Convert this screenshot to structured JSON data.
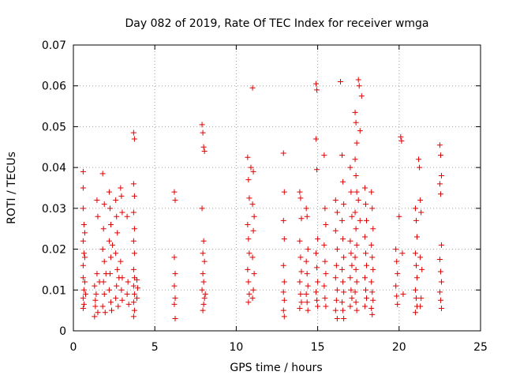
{
  "chart_data": {
    "type": "scatter",
    "title": "Day 082 of 2019, Rate Of TEC Index for receiver wmga",
    "xlabel": "GPS time / hours",
    "ylabel": "ROTI / TECUs",
    "xlim": [
      0,
      25
    ],
    "ylim": [
      0,
      0.07
    ],
    "x_ticks": [
      0,
      5,
      10,
      15,
      20,
      25
    ],
    "x_tick_labels": [
      "0",
      "5",
      "10",
      "15",
      "20",
      "25"
    ],
    "y_ticks": [
      0,
      0.01,
      0.02,
      0.03,
      0.04,
      0.05,
      0.06,
      0.07
    ],
    "y_tick_labels": [
      "0",
      "0.01",
      "0.02",
      "0.03",
      "0.04",
      "0.05",
      "0.06",
      "0.07"
    ],
    "grid": true,
    "marker": "+",
    "color": "#e00000",
    "points": [
      [
        0.6,
        0.039
      ],
      [
        0.6,
        0.035
      ],
      [
        0.6,
        0.03
      ],
      [
        0.65,
        0.026
      ],
      [
        0.6,
        0.022
      ],
      [
        0.65,
        0.019
      ],
      [
        0.6,
        0.016
      ],
      [
        0.6,
        0.013
      ],
      [
        0.65,
        0.01
      ],
      [
        0.6,
        0.008
      ],
      [
        0.65,
        0.0065
      ],
      [
        0.6,
        0.0055
      ],
      [
        0.7,
        0.012
      ],
      [
        0.7,
        0.018
      ],
      [
        0.7,
        0.024
      ],
      [
        0.75,
        0.009
      ],
      [
        1.3,
        0.0035
      ],
      [
        1.35,
        0.006
      ],
      [
        1.4,
        0.009
      ],
      [
        1.3,
        0.011
      ],
      [
        1.45,
        0.014
      ],
      [
        1.5,
        0.028
      ],
      [
        1.45,
        0.032
      ],
      [
        1.35,
        0.0075
      ],
      [
        1.5,
        0.0045
      ],
      [
        1.6,
        0.012
      ],
      [
        1.8,
        0.0385
      ],
      [
        1.85,
        0.025
      ],
      [
        1.8,
        0.02
      ],
      [
        1.9,
        0.017
      ],
      [
        1.85,
        0.012
      ],
      [
        1.9,
        0.009
      ],
      [
        1.8,
        0.006
      ],
      [
        1.95,
        0.0045
      ],
      [
        1.9,
        0.031
      ],
      [
        2.0,
        0.014
      ],
      [
        2.2,
        0.034
      ],
      [
        2.25,
        0.03
      ],
      [
        2.3,
        0.026
      ],
      [
        2.2,
        0.022
      ],
      [
        2.3,
        0.018
      ],
      [
        2.25,
        0.014
      ],
      [
        2.2,
        0.01
      ],
      [
        2.3,
        0.007
      ],
      [
        2.35,
        0.005
      ],
      [
        2.4,
        0.021
      ],
      [
        2.6,
        0.032
      ],
      [
        2.65,
        0.028
      ],
      [
        2.7,
        0.024
      ],
      [
        2.6,
        0.019
      ],
      [
        2.7,
        0.015
      ],
      [
        2.65,
        0.011
      ],
      [
        2.6,
        0.008
      ],
      [
        2.75,
        0.006
      ],
      [
        2.8,
        0.013
      ],
      [
        2.9,
        0.035
      ],
      [
        2.95,
        0.033
      ],
      [
        3.0,
        0.029
      ],
      [
        2.9,
        0.017
      ],
      [
        3.0,
        0.013
      ],
      [
        2.95,
        0.01
      ],
      [
        3.0,
        0.0075
      ],
      [
        3.3,
        0.028
      ],
      [
        3.35,
        0.012
      ],
      [
        3.3,
        0.009
      ],
      [
        3.4,
        0.0065
      ],
      [
        3.7,
        0.0485
      ],
      [
        3.75,
        0.047
      ],
      [
        3.7,
        0.036
      ],
      [
        3.75,
        0.033
      ],
      [
        3.7,
        0.029
      ],
      [
        3.75,
        0.025
      ],
      [
        3.7,
        0.022
      ],
      [
        3.75,
        0.019
      ],
      [
        3.7,
        0.015
      ],
      [
        3.75,
        0.013
      ],
      [
        3.7,
        0.011
      ],
      [
        3.75,
        0.009
      ],
      [
        3.7,
        0.007
      ],
      [
        3.75,
        0.005
      ],
      [
        3.7,
        0.0035
      ],
      [
        3.9,
        0.0125
      ],
      [
        3.95,
        0.0105
      ],
      [
        3.9,
        0.008
      ],
      [
        6.2,
        0.034
      ],
      [
        6.25,
        0.032
      ],
      [
        6.2,
        0.018
      ],
      [
        6.25,
        0.014
      ],
      [
        6.2,
        0.011
      ],
      [
        6.25,
        0.008
      ],
      [
        6.2,
        0.0065
      ],
      [
        6.25,
        0.003
      ],
      [
        7.9,
        0.0505
      ],
      [
        7.95,
        0.0485
      ],
      [
        8.0,
        0.045
      ],
      [
        8.05,
        0.044
      ],
      [
        7.9,
        0.03
      ],
      [
        8.0,
        0.022
      ],
      [
        7.95,
        0.019
      ],
      [
        8.05,
        0.017
      ],
      [
        7.95,
        0.014
      ],
      [
        8.0,
        0.012
      ],
      [
        7.9,
        0.01
      ],
      [
        8.05,
        0.008
      ],
      [
        8.0,
        0.0065
      ],
      [
        7.95,
        0.005
      ],
      [
        8.1,
        0.009
      ],
      [
        10.7,
        0.0425
      ],
      [
        10.75,
        0.037
      ],
      [
        10.8,
        0.0325
      ],
      [
        10.7,
        0.026
      ],
      [
        10.75,
        0.0225
      ],
      [
        10.8,
        0.019
      ],
      [
        10.7,
        0.015
      ],
      [
        10.75,
        0.012
      ],
      [
        10.8,
        0.009
      ],
      [
        10.75,
        0.007
      ],
      [
        10.9,
        0.04
      ],
      [
        11.0,
        0.0595
      ],
      [
        11.05,
        0.039
      ],
      [
        11.0,
        0.031
      ],
      [
        11.1,
        0.028
      ],
      [
        11.05,
        0.0245
      ],
      [
        11.0,
        0.018
      ],
      [
        11.1,
        0.014
      ],
      [
        11.05,
        0.01
      ],
      [
        11.0,
        0.008
      ],
      [
        12.9,
        0.0435
      ],
      [
        12.95,
        0.034
      ],
      [
        12.9,
        0.027
      ],
      [
        12.95,
        0.0225
      ],
      [
        12.9,
        0.016
      ],
      [
        12.95,
        0.012
      ],
      [
        12.9,
        0.0095
      ],
      [
        12.95,
        0.0075
      ],
      [
        12.9,
        0.005
      ],
      [
        12.95,
        0.0035
      ],
      [
        13.9,
        0.034
      ],
      [
        13.95,
        0.0325
      ],
      [
        14.0,
        0.0275
      ],
      [
        13.9,
        0.022
      ],
      [
        13.95,
        0.018
      ],
      [
        14.0,
        0.0145
      ],
      [
        13.9,
        0.012
      ],
      [
        13.95,
        0.009
      ],
      [
        14.0,
        0.007
      ],
      [
        13.9,
        0.0055
      ],
      [
        14.3,
        0.03
      ],
      [
        14.35,
        0.028
      ],
      [
        14.4,
        0.02
      ],
      [
        14.3,
        0.017
      ],
      [
        14.35,
        0.014
      ],
      [
        14.4,
        0.011
      ],
      [
        14.3,
        0.009
      ],
      [
        14.35,
        0.007
      ],
      [
        14.4,
        0.005
      ],
      [
        14.9,
        0.0605
      ],
      [
        14.95,
        0.059
      ],
      [
        14.9,
        0.047
      ],
      [
        14.95,
        0.0395
      ],
      [
        15.0,
        0.0225
      ],
      [
        14.9,
        0.019
      ],
      [
        14.95,
        0.0155
      ],
      [
        15.0,
        0.012
      ],
      [
        14.9,
        0.0095
      ],
      [
        14.95,
        0.0075
      ],
      [
        15.0,
        0.006
      ],
      [
        15.4,
        0.043
      ],
      [
        15.45,
        0.03
      ],
      [
        15.5,
        0.026
      ],
      [
        15.4,
        0.021
      ],
      [
        15.45,
        0.017
      ],
      [
        15.5,
        0.014
      ],
      [
        15.4,
        0.011
      ],
      [
        15.45,
        0.008
      ],
      [
        15.5,
        0.006
      ],
      [
        16.1,
        0.032
      ],
      [
        16.2,
        0.029
      ],
      [
        16.1,
        0.0245
      ],
      [
        16.2,
        0.02
      ],
      [
        16.15,
        0.016
      ],
      [
        16.1,
        0.013
      ],
      [
        16.2,
        0.01
      ],
      [
        16.15,
        0.0075
      ],
      [
        16.1,
        0.005
      ],
      [
        16.2,
        0.003
      ],
      [
        16.4,
        0.061
      ],
      [
        16.5,
        0.043
      ],
      [
        16.55,
        0.0365
      ],
      [
        16.6,
        0.031
      ],
      [
        16.5,
        0.027
      ],
      [
        16.55,
        0.0225
      ],
      [
        16.6,
        0.018
      ],
      [
        16.5,
        0.015
      ],
      [
        16.55,
        0.012
      ],
      [
        16.6,
        0.0095
      ],
      [
        16.5,
        0.007
      ],
      [
        16.55,
        0.005
      ],
      [
        16.6,
        0.003
      ],
      [
        17.0,
        0.04
      ],
      [
        17.05,
        0.034
      ],
      [
        17.1,
        0.028
      ],
      [
        17.0,
        0.022
      ],
      [
        17.05,
        0.019
      ],
      [
        17.1,
        0.016
      ],
      [
        17.0,
        0.013
      ],
      [
        17.05,
        0.01
      ],
      [
        17.1,
        0.008
      ],
      [
        17.0,
        0.006
      ],
      [
        17.3,
        0.0535
      ],
      [
        17.35,
        0.051
      ],
      [
        17.4,
        0.046
      ],
      [
        17.3,
        0.042
      ],
      [
        17.35,
        0.038
      ],
      [
        17.4,
        0.034
      ],
      [
        17.3,
        0.029
      ],
      [
        17.35,
        0.025
      ],
      [
        17.4,
        0.021
      ],
      [
        17.3,
        0.018
      ],
      [
        17.35,
        0.015
      ],
      [
        17.4,
        0.012
      ],
      [
        17.3,
        0.0095
      ],
      [
        17.35,
        0.007
      ],
      [
        17.4,
        0.005
      ],
      [
        17.5,
        0.0615
      ],
      [
        17.55,
        0.06
      ],
      [
        17.6,
        0.049
      ],
      [
        17.7,
        0.0575
      ],
      [
        17.5,
        0.032
      ],
      [
        17.6,
        0.027
      ],
      [
        17.9,
        0.035
      ],
      [
        17.95,
        0.031
      ],
      [
        18.0,
        0.027
      ],
      [
        17.9,
        0.023
      ],
      [
        17.95,
        0.019
      ],
      [
        18.0,
        0.016
      ],
      [
        17.9,
        0.013
      ],
      [
        17.95,
        0.01
      ],
      [
        18.0,
        0.008
      ],
      [
        17.9,
        0.006
      ],
      [
        18.3,
        0.034
      ],
      [
        18.35,
        0.03
      ],
      [
        18.4,
        0.025
      ],
      [
        18.3,
        0.021
      ],
      [
        18.35,
        0.018
      ],
      [
        18.4,
        0.015
      ],
      [
        18.3,
        0.012
      ],
      [
        18.35,
        0.0095
      ],
      [
        18.4,
        0.0075
      ],
      [
        18.3,
        0.0055
      ],
      [
        18.35,
        0.004
      ],
      [
        19.8,
        0.02
      ],
      [
        19.85,
        0.017
      ],
      [
        19.9,
        0.014
      ],
      [
        19.8,
        0.011
      ],
      [
        19.85,
        0.0085
      ],
      [
        19.9,
        0.0065
      ],
      [
        20.0,
        0.028
      ],
      [
        20.1,
        0.0475
      ],
      [
        20.15,
        0.0465
      ],
      [
        20.2,
        0.019
      ],
      [
        20.25,
        0.009
      ],
      [
        21.0,
        0.03
      ],
      [
        21.05,
        0.027
      ],
      [
        21.1,
        0.023
      ],
      [
        21.0,
        0.019
      ],
      [
        21.05,
        0.016
      ],
      [
        21.1,
        0.013
      ],
      [
        21.0,
        0.01
      ],
      [
        21.05,
        0.008
      ],
      [
        21.1,
        0.006
      ],
      [
        21.0,
        0.0045
      ],
      [
        21.2,
        0.042
      ],
      [
        21.25,
        0.04
      ],
      [
        21.3,
        0.032
      ],
      [
        21.35,
        0.029
      ],
      [
        21.3,
        0.018
      ],
      [
        21.35,
        0.008
      ],
      [
        21.3,
        0.006
      ],
      [
        21.4,
        0.015
      ],
      [
        22.5,
        0.0455
      ],
      [
        22.55,
        0.043
      ],
      [
        22.6,
        0.038
      ],
      [
        22.5,
        0.036
      ],
      [
        22.55,
        0.0335
      ],
      [
        22.6,
        0.021
      ],
      [
        22.5,
        0.0175
      ],
      [
        22.55,
        0.0145
      ],
      [
        22.6,
        0.012
      ],
      [
        22.5,
        0.0095
      ],
      [
        22.55,
        0.0075
      ],
      [
        22.6,
        0.0055
      ]
    ]
  }
}
